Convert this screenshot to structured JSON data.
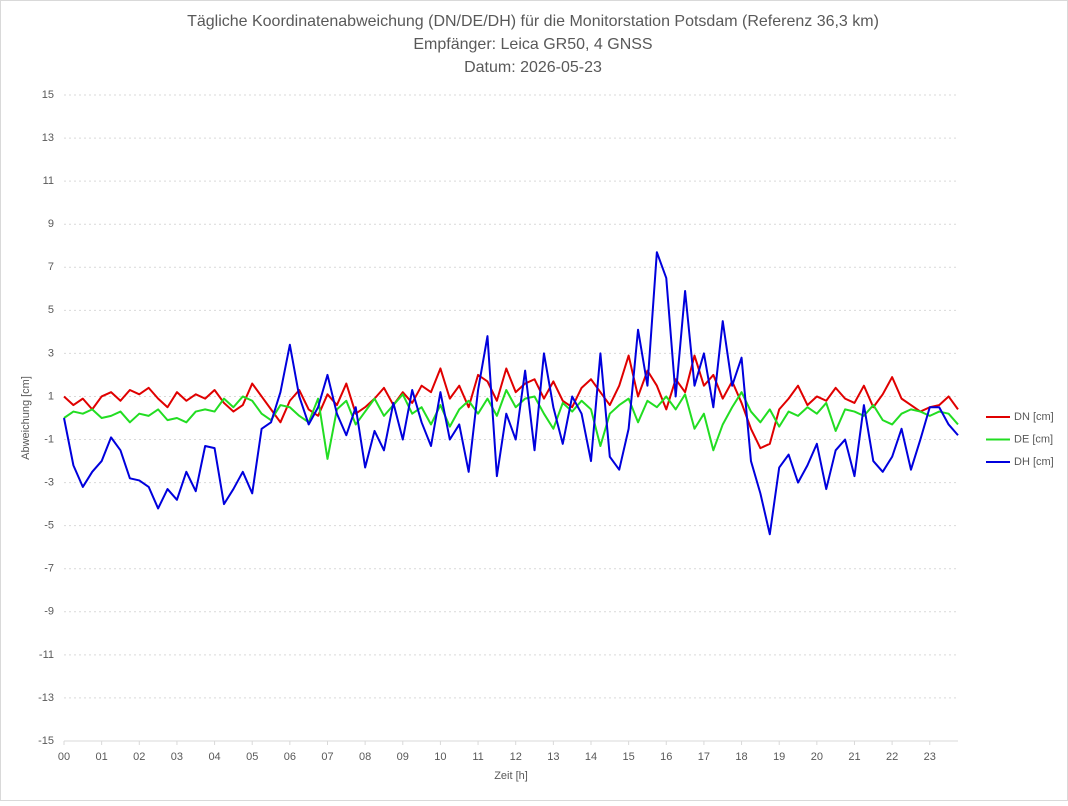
{
  "chart_data": {
    "type": "line",
    "title": "Tägliche Koordinatenabweichung (DN/DE/DH) für die Monitorstation Potsdam (Referenz 36,3 km)",
    "subtitle": "Empfänger: Leica GR50, 4 GNSS",
    "date": "Datum: 2026-05-23",
    "y_label": "Abweichung [cm]",
    "x_label": "Zeit [h]",
    "x": [
      0,
      0.25,
      0.5,
      0.75,
      1,
      1.25,
      1.5,
      1.75,
      2,
      2.25,
      2.5,
      2.75,
      3,
      3.25,
      3.5,
      3.75,
      4,
      4.25,
      4.5,
      4.75,
      5,
      5.25,
      5.5,
      5.75,
      6,
      6.25,
      6.5,
      6.75,
      7,
      7.25,
      7.5,
      7.75,
      8,
      8.25,
      8.5,
      8.75,
      9,
      9.25,
      9.5,
      9.75,
      10,
      10.25,
      10.5,
      10.75,
      11,
      11.25,
      11.5,
      11.75,
      12,
      12.25,
      12.5,
      12.75,
      13,
      13.25,
      13.5,
      13.75,
      14,
      14.25,
      14.5,
      14.75,
      15,
      15.25,
      15.5,
      15.75,
      16,
      16.25,
      16.5,
      16.75,
      17,
      17.25,
      17.5,
      17.75,
      18,
      18.25,
      18.5,
      18.75,
      19,
      19.25,
      19.5,
      19.75,
      20,
      20.25,
      20.5,
      20.75,
      21,
      21.25,
      21.5,
      21.75,
      22,
      22.25,
      22.5,
      22.75,
      23,
      23.25,
      23.5,
      23.75
    ],
    "series": [
      {
        "name": "DN [cm]",
        "color": "#e00000",
        "values": [
          1,
          0.6,
          0.9,
          0.4,
          1,
          1.2,
          0.8,
          1.3,
          1.1,
          1.4,
          0.9,
          0.5,
          1.2,
          0.8,
          1.1,
          0.9,
          1.3,
          0.7,
          0.3,
          0.6,
          1.6,
          1,
          0.4,
          -0.2,
          0.8,
          1.3,
          0.4,
          0.1,
          1.1,
          0.6,
          1.6,
          0.2,
          0.5,
          0.9,
          1.4,
          0.6,
          1.2,
          0.7,
          1.5,
          1.2,
          2.3,
          0.9,
          1.5,
          0.5,
          2,
          1.7,
          0.8,
          2.3,
          1.2,
          1.6,
          1.8,
          0.9,
          1.7,
          0.8,
          0.5,
          1.4,
          1.8,
          1.2,
          0.6,
          1.5,
          2.9,
          1,
          2.2,
          1.5,
          0.4,
          1.8,
          1.2,
          2.9,
          1.5,
          2,
          0.9,
          1.7,
          0.7,
          -0.5,
          -1.4,
          -1.2,
          0.4,
          0.9,
          1.5,
          0.6,
          1,
          0.8,
          1.4,
          0.9,
          0.7,
          1.5,
          0.5,
          1.1,
          1.9,
          0.9,
          0.6,
          0.3,
          0.5,
          0.6,
          1,
          0.4
        ]
      },
      {
        "name": "DE [cm]",
        "color": "#22dd22",
        "values": [
          0,
          0.3,
          0.2,
          0.4,
          0,
          0.1,
          0.3,
          -0.2,
          0.2,
          0.1,
          0.4,
          -0.1,
          0,
          -0.2,
          0.3,
          0.4,
          0.3,
          0.9,
          0.5,
          1,
          0.8,
          0.2,
          -0.1,
          0.6,
          0.5,
          0.1,
          -0.2,
          0.9,
          -1.9,
          0.4,
          0.8,
          -0.3,
          0.3,
          0.9,
          0.1,
          0.6,
          1.1,
          0.2,
          0.5,
          -0.3,
          0.6,
          -0.4,
          0.4,
          0.8,
          0.2,
          0.9,
          0.1,
          1.3,
          0.5,
          0.9,
          1,
          0.2,
          -0.5,
          0.7,
          0.3,
          0.8,
          0.4,
          -1.3,
          0.2,
          0.6,
          0.9,
          -0.2,
          0.8,
          0.5,
          1,
          0.4,
          1.1,
          -0.5,
          0.2,
          -1.5,
          -0.3,
          0.5,
          1.2,
          0.3,
          -0.2,
          0.4,
          -0.4,
          0.3,
          0.1,
          0.5,
          0.2,
          0.7,
          -0.6,
          0.4,
          0.3,
          0.1,
          0.6,
          -0.1,
          -0.3,
          0.2,
          0.4,
          0.3,
          0.1,
          0.3,
          0.2,
          -0.3
        ]
      },
      {
        "name": "DH [cm]",
        "color": "#0000dd",
        "values": [
          0,
          -2.2,
          -3.2,
          -2.5,
          -2,
          -0.9,
          -1.5,
          -2.8,
          -2.9,
          -3.2,
          -4.2,
          -3.3,
          -3.8,
          -2.5,
          -3.4,
          -1.3,
          -1.4,
          -4,
          -3.3,
          -2.5,
          -3.5,
          -0.5,
          -0.2,
          1.2,
          3.4,
          1,
          -0.3,
          0.5,
          2,
          0.2,
          -0.8,
          0.5,
          -2.3,
          -0.6,
          -1.5,
          0.7,
          -1,
          1.3,
          -0.2,
          -1.3,
          1.2,
          -1,
          -0.3,
          -2.5,
          1.3,
          3.8,
          -2.7,
          0.2,
          -1,
          2.2,
          -1.5,
          3,
          0.5,
          -1.2,
          1,
          0.2,
          -2,
          3,
          -1.8,
          -2.4,
          -0.5,
          4.1,
          1.5,
          7.7,
          6.5,
          1,
          5.9,
          1.5,
          3,
          0.5,
          4.5,
          1.5,
          2.8,
          -2,
          -3.5,
          -5.4,
          -2.3,
          -1.7,
          -3,
          -2.2,
          -1.2,
          -3.3,
          -1.5,
          -1,
          -2.7,
          0.6,
          -2,
          -2.5,
          -1.8,
          -0.5,
          -2.4,
          -1,
          0.5,
          0.5,
          -0.3,
          -0.8
        ]
      }
    ],
    "xlim": [
      0,
      23.75
    ],
    "xticks": [
      {
        "value": 0,
        "label": "00"
      },
      {
        "value": 1,
        "label": "01"
      },
      {
        "value": 2,
        "label": "02"
      },
      {
        "value": 3,
        "label": "03"
      },
      {
        "value": 4,
        "label": "04"
      },
      {
        "value": 5,
        "label": "05"
      },
      {
        "value": 6,
        "label": "06"
      },
      {
        "value": 7,
        "label": "07"
      },
      {
        "value": 8,
        "label": "08"
      },
      {
        "value": 9,
        "label": "09"
      },
      {
        "value": 10,
        "label": "10"
      },
      {
        "value": 11,
        "label": "11"
      },
      {
        "value": 12,
        "label": "12"
      },
      {
        "value": 13,
        "label": "13"
      },
      {
        "value": 14,
        "label": "14"
      },
      {
        "value": 15,
        "label": "15"
      },
      {
        "value": 16,
        "label": "16"
      },
      {
        "value": 17,
        "label": "17"
      },
      {
        "value": 18,
        "label": "18"
      },
      {
        "value": 19,
        "label": "19"
      },
      {
        "value": 20,
        "label": "20"
      },
      {
        "value": 21,
        "label": "21"
      },
      {
        "value": 22,
        "label": "22"
      },
      {
        "value": 23,
        "label": "23"
      }
    ],
    "ylim": [
      -15,
      15
    ],
    "yticks": [
      -15,
      -13,
      -11,
      -9,
      -7,
      -5,
      -3,
      -1,
      1,
      3,
      5,
      7,
      9,
      11,
      13,
      15
    ],
    "grid": true,
    "legend": "right"
  }
}
